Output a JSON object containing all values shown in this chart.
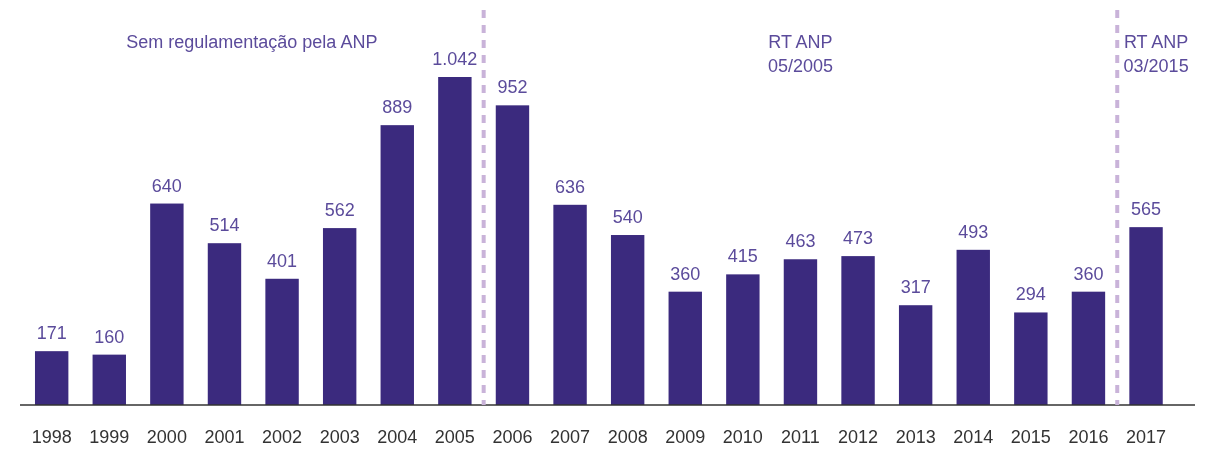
{
  "chart_data": {
    "type": "bar",
    "x": [
      1998,
      1999,
      2000,
      2001,
      2002,
      2003,
      2004,
      2005,
      2006,
      2007,
      2008,
      2009,
      2010,
      2011,
      2012,
      2013,
      2014,
      2015,
      2016,
      2017
    ],
    "xlim": [
      1997.45,
      2017.85
    ],
    "xticks": [
      1998,
      1999,
      2000,
      2001,
      2002,
      2003,
      2004,
      2005,
      2006,
      2007,
      2008,
      2009,
      2010,
      2011,
      2012,
      2013,
      2014,
      2015,
      2016,
      2017
    ],
    "values": [
      171,
      160,
      640,
      514,
      401,
      562,
      889,
      1042,
      952,
      636,
      540,
      360,
      415,
      463,
      473,
      317,
      493,
      294,
      360,
      565
    ],
    "value_labels": [
      "171",
      "160",
      "640",
      "514",
      "401",
      "562",
      "889",
      "1.042",
      "952",
      "636",
      "540",
      "360",
      "415",
      "463",
      "473",
      "317",
      "493",
      "294",
      "360",
      "565"
    ],
    "color": "#3b2a7e",
    "ref_lines": [
      {
        "axis": "x",
        "value": 2005.5,
        "color": "#c9b3d9",
        "line_style": "dashed"
      },
      {
        "axis": "x",
        "value": 2016.5,
        "color": "#c9b3d9",
        "line_style": "dashed"
      }
    ],
    "annotations": [
      "Sem regulamentação pela ANP",
      "RT ANP\n05/2005",
      "RT ANP\n03/2015"
    ]
  }
}
